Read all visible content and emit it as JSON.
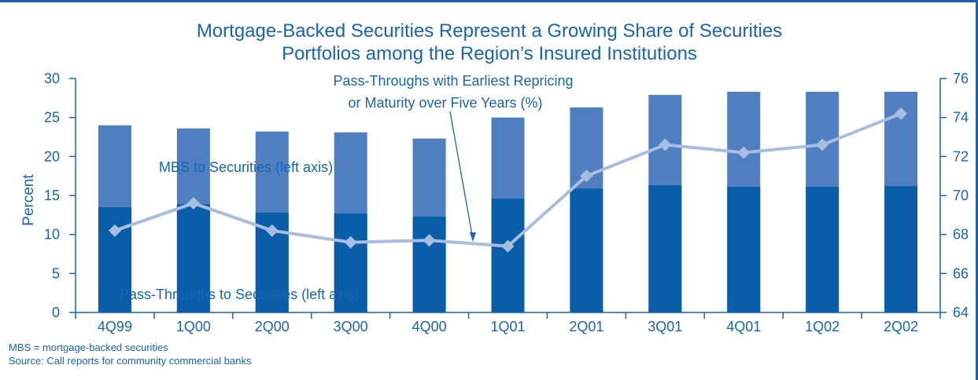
{
  "chart_data": {
    "type": "bar",
    "title_lines": [
      "Mortgage-Backed Securities Represent a Growing Share of Securities",
      "Portfolios among the Region’s Insured Institutions"
    ],
    "categories": [
      "4Q99",
      "1Q00",
      "2Q00",
      "3Q00",
      "4Q00",
      "1Q01",
      "2Q01",
      "3Q01",
      "4Q01",
      "1Q02",
      "2Q02"
    ],
    "series": [
      {
        "name": "MBS to Securities (left axis)",
        "type": "bar",
        "axis": "left",
        "color": "#4f7fc0",
        "values": [
          24.0,
          23.6,
          23.2,
          23.1,
          22.3,
          25.0,
          26.3,
          27.9,
          28.3,
          28.3,
          28.3
        ]
      },
      {
        "name": "Pass-Throughs to Securities (left axis)",
        "type": "bar",
        "axis": "left",
        "color": "#0a5ea9",
        "values": [
          13.5,
          13.9,
          12.8,
          12.7,
          12.3,
          14.6,
          15.9,
          16.3,
          16.1,
          16.1,
          16.2
        ]
      },
      {
        "name": "Pass-Throughs with Earliest Repricing or Maturity over Five Years (%)",
        "type": "line",
        "axis": "right",
        "color": "#a9bde0",
        "values": [
          68.2,
          69.6,
          68.2,
          67.6,
          67.7,
          67.4,
          71.0,
          72.6,
          72.2,
          72.6,
          74.2
        ]
      }
    ],
    "ylabel": "Percent",
    "ylim_left": [
      0,
      30
    ],
    "yticks_left": [
      "0",
      "5",
      "10",
      "15",
      "20",
      "25",
      "30"
    ],
    "ylim_right": [
      64,
      76
    ],
    "yticks_right": [
      "64",
      "66",
      "68",
      "70",
      "72",
      "74",
      "76"
    ],
    "annotations": {
      "mbs_label": "MBS to Securities (left axis)",
      "pass_label": "Pass-Throughs to Securities (left axis)",
      "line_label_1": "Pass-Throughs with Earliest Repricing",
      "line_label_2": "or Maturity over Five Years (%)"
    },
    "grid": false,
    "legend": "none"
  },
  "footnotes": {
    "note": "MBS = mortgage-backed securities",
    "source": "Source: Call reports for community commercial banks"
  },
  "colors": {
    "accent": "#1a64b0",
    "frame": "#1f5fa6",
    "marker": "#a9bde0"
  }
}
